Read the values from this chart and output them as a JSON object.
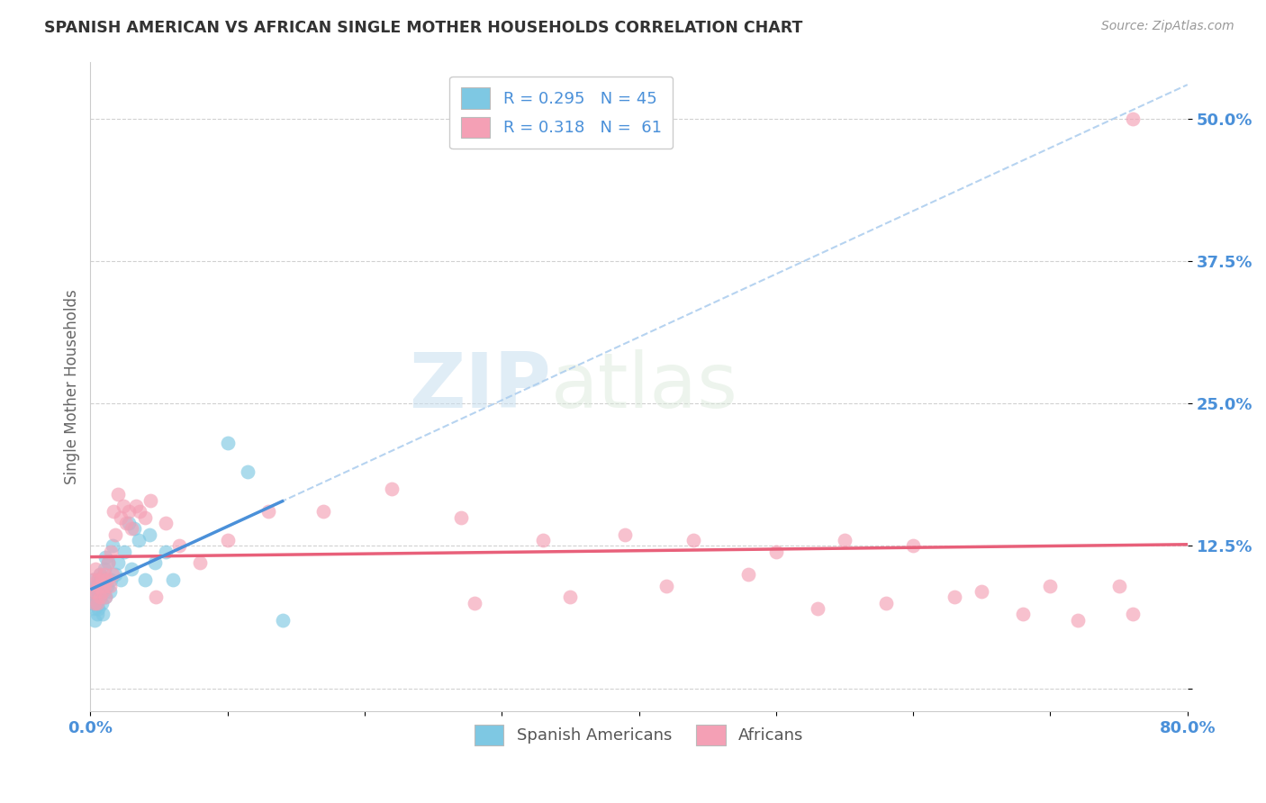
{
  "title": "SPANISH AMERICAN VS AFRICAN SINGLE MOTHER HOUSEHOLDS CORRELATION CHART",
  "source": "Source: ZipAtlas.com",
  "ylabel": "Single Mother Households",
  "xlim": [
    0.0,
    0.8
  ],
  "ylim": [
    -0.02,
    0.55
  ],
  "yticks": [
    0.0,
    0.125,
    0.25,
    0.375,
    0.5
  ],
  "ytick_labels": [
    "",
    "12.5%",
    "25.0%",
    "37.5%",
    "50.0%"
  ],
  "xticks": [
    0.0,
    0.1,
    0.2,
    0.3,
    0.4,
    0.5,
    0.6,
    0.7,
    0.8
  ],
  "xtick_labels": [
    "0.0%",
    "",
    "",
    "",
    "",
    "",
    "",
    "",
    "80.0%"
  ],
  "legend_label_1": "R = 0.295   N = 45",
  "legend_label_2": "R = 0.318   N =  61",
  "color_blue": "#7ec8e3",
  "color_pink": "#f4a0b5",
  "color_blue_line": "#4a90d9",
  "color_pink_line": "#e8607a",
  "color_blue_label": "#4a90d9",
  "watermark_zip": "ZIP",
  "watermark_atlas": "atlas",
  "spanish_x": [
    0.001,
    0.002,
    0.002,
    0.003,
    0.003,
    0.003,
    0.004,
    0.004,
    0.005,
    0.005,
    0.005,
    0.006,
    0.006,
    0.007,
    0.007,
    0.007,
    0.008,
    0.008,
    0.009,
    0.009,
    0.01,
    0.01,
    0.011,
    0.011,
    0.012,
    0.013,
    0.014,
    0.015,
    0.016,
    0.018,
    0.02,
    0.022,
    0.025,
    0.028,
    0.03,
    0.032,
    0.035,
    0.04,
    0.043,
    0.047,
    0.055,
    0.06,
    0.1,
    0.115,
    0.14
  ],
  "spanish_y": [
    0.075,
    0.085,
    0.095,
    0.06,
    0.07,
    0.08,
    0.075,
    0.09,
    0.065,
    0.075,
    0.085,
    0.07,
    0.095,
    0.08,
    0.09,
    0.1,
    0.075,
    0.085,
    0.065,
    0.09,
    0.095,
    0.105,
    0.08,
    0.115,
    0.09,
    0.11,
    0.085,
    0.095,
    0.125,
    0.1,
    0.11,
    0.095,
    0.12,
    0.145,
    0.105,
    0.14,
    0.13,
    0.095,
    0.135,
    0.11,
    0.12,
    0.095,
    0.215,
    0.19,
    0.06
  ],
  "african_x": [
    0.001,
    0.002,
    0.003,
    0.004,
    0.004,
    0.005,
    0.005,
    0.006,
    0.007,
    0.007,
    0.008,
    0.009,
    0.01,
    0.01,
    0.011,
    0.012,
    0.013,
    0.014,
    0.015,
    0.016,
    0.017,
    0.018,
    0.02,
    0.022,
    0.024,
    0.026,
    0.028,
    0.03,
    0.033,
    0.036,
    0.04,
    0.044,
    0.048,
    0.055,
    0.065,
    0.08,
    0.1,
    0.13,
    0.17,
    0.22,
    0.27,
    0.33,
    0.39,
    0.44,
    0.5,
    0.55,
    0.6,
    0.65,
    0.7,
    0.75,
    0.28,
    0.35,
    0.42,
    0.48,
    0.53,
    0.58,
    0.63,
    0.68,
    0.72,
    0.76,
    0.76
  ],
  "african_y": [
    0.085,
    0.095,
    0.075,
    0.105,
    0.085,
    0.095,
    0.075,
    0.09,
    0.08,
    0.1,
    0.095,
    0.085,
    0.09,
    0.1,
    0.08,
    0.095,
    0.11,
    0.09,
    0.12,
    0.1,
    0.155,
    0.135,
    0.17,
    0.15,
    0.16,
    0.145,
    0.155,
    0.14,
    0.16,
    0.155,
    0.15,
    0.165,
    0.08,
    0.145,
    0.125,
    0.11,
    0.13,
    0.155,
    0.155,
    0.175,
    0.15,
    0.13,
    0.135,
    0.13,
    0.12,
    0.13,
    0.125,
    0.085,
    0.09,
    0.09,
    0.075,
    0.08,
    0.09,
    0.1,
    0.07,
    0.075,
    0.08,
    0.065,
    0.06,
    0.065,
    0.5
  ]
}
